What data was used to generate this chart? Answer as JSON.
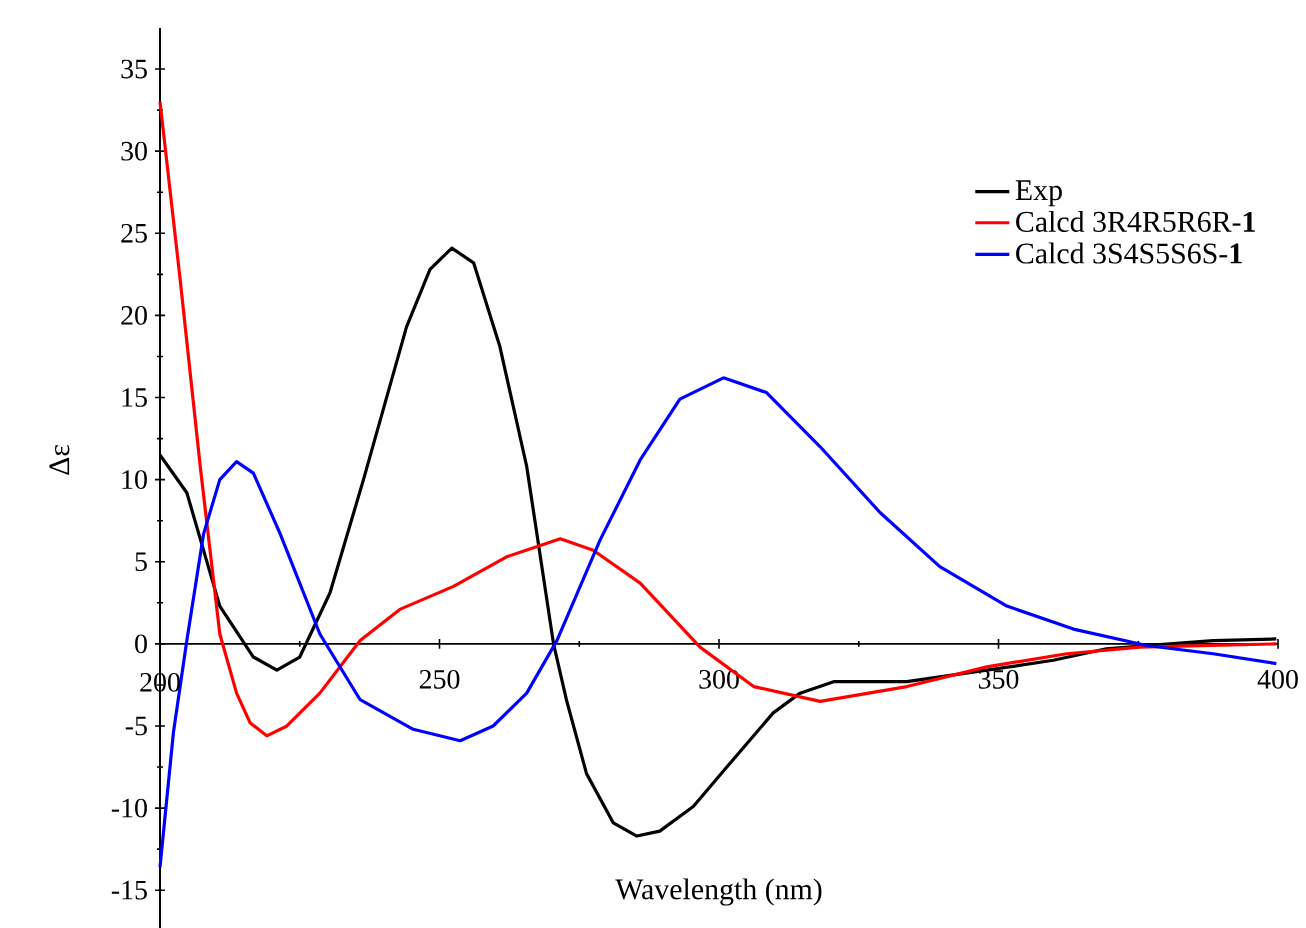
{
  "chart_data": {
    "type": "line",
    "xlabel": "Wavelength (nm)",
    "ylabel": "Δε",
    "xlim": [
      200,
      400
    ],
    "ylim": [
      -17.3,
      37.5
    ],
    "xticks": [
      200,
      250,
      300,
      350,
      400
    ],
    "yticks": [
      -15,
      -10,
      -5,
      0,
      5,
      10,
      15,
      20,
      25,
      30,
      35
    ],
    "legend": "top right",
    "series": [
      {
        "name": "Exp",
        "color": "#000000",
        "x": [
          200,
          204.8,
          210.7,
          216.7,
          220.9,
          225,
          230.4,
          236.4,
          244.1,
          248.3,
          252.2,
          256.1,
          260.8,
          265.6,
          270.4,
          272.7,
          276.3,
          281.1,
          285.3,
          289.4,
          295.4,
          301.4,
          309.7,
          314.5,
          320.5,
          333.6,
          347.9,
          359.8,
          369.3,
          376.5,
          388.4,
          399.7
        ],
        "values": [
          11.5,
          9.2,
          2.3,
          -0.8,
          -1.6,
          -0.8,
          3.1,
          10,
          19.3,
          22.8,
          24.1,
          23.2,
          18.1,
          10.8,
          0,
          -3.4,
          -7.9,
          -10.9,
          -11.7,
          -11.4,
          -9.9,
          -7.5,
          -4.2,
          -3.0,
          -2.3,
          -2.3,
          -1.6,
          -1.0,
          -0.3,
          -0.1,
          0.2,
          0.3
        ]
      },
      {
        "name": "Calcd 3R4R5R6R-**1**",
        "color": "#ff0000",
        "x": [
          200,
          203.6,
          207.2,
          210.7,
          213.7,
          216.1,
          219.1,
          222.7,
          228.6,
          235.8,
          242.9,
          252.5,
          262,
          271.6,
          277.5,
          285.9,
          296.6,
          306.2,
          318.1,
          333.6,
          347.9,
          362.2,
          375.3,
          399.7
        ],
        "values": [
          33.0,
          22.2,
          10.8,
          0.6,
          -3.0,
          -4.8,
          -5.6,
          -5.0,
          -3.0,
          0.2,
          2.1,
          3.5,
          5.3,
          6.4,
          5.7,
          3.7,
          -0.2,
          -2.6,
          -3.5,
          -2.6,
          -1.4,
          -0.6,
          -0.2,
          0.0
        ]
      },
      {
        "name": "Calcd 3S4S5S6S-**1**",
        "color": "#0000ff",
        "x": [
          200,
          202.4,
          204.8,
          207.8,
          210.7,
          213.7,
          216.7,
          221.5,
          228.6,
          235.8,
          245.3,
          253.7,
          259.6,
          265.6,
          271,
          278.7,
          285.9,
          293,
          300.8,
          308.5,
          318.1,
          328.8,
          339.5,
          351.5,
          363.4,
          376.5,
          388.4,
          399.7
        ],
        "values": [
          -13.6,
          -5.4,
          0.2,
          6.7,
          10,
          11.1,
          10.4,
          6.7,
          0.6,
          -3.4,
          -5.2,
          -5.9,
          -5.0,
          -3.0,
          0.2,
          6.3,
          11.2,
          14.9,
          16.2,
          15.3,
          12.0,
          8.0,
          4.7,
          2.3,
          0.9,
          -0.1,
          -0.6,
          -1.2
        ]
      }
    ]
  }
}
